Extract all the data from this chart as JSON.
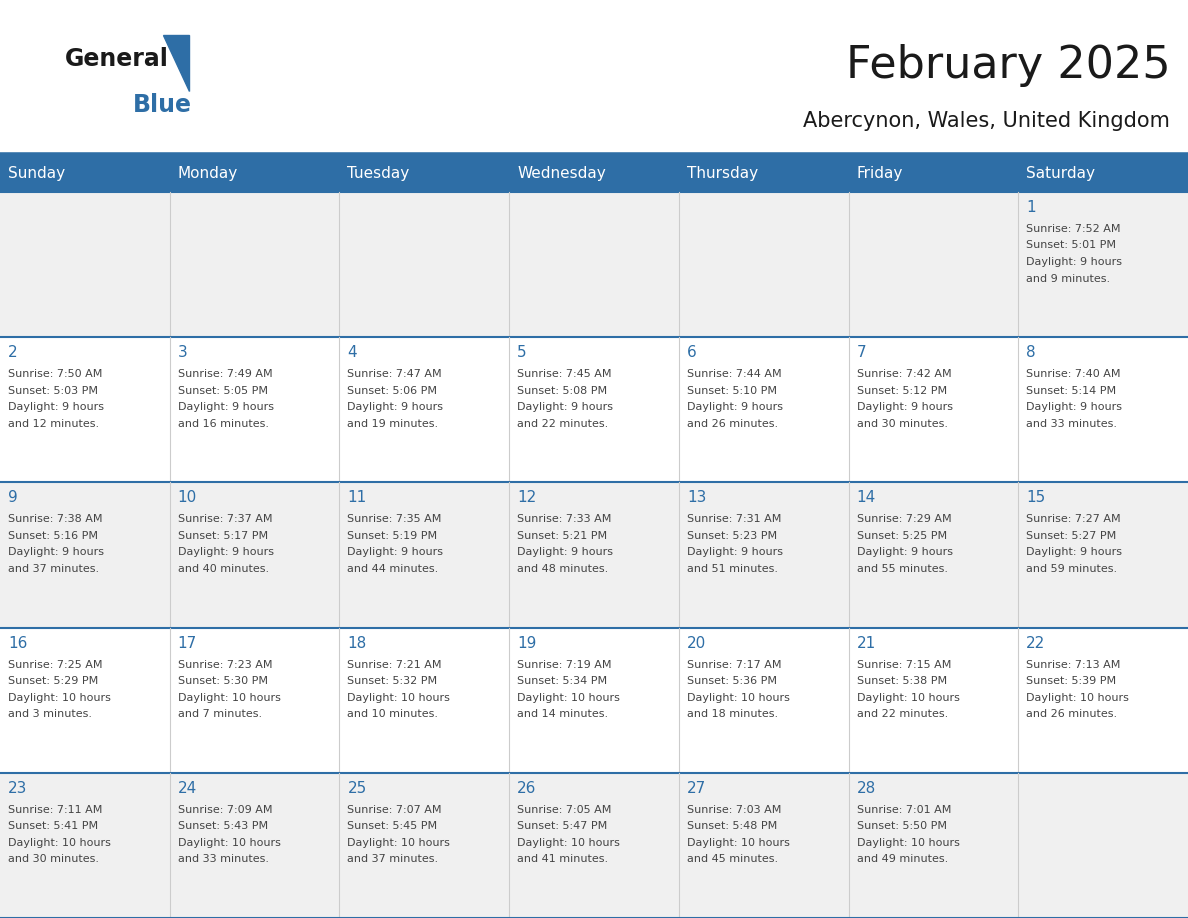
{
  "title": "February 2025",
  "subtitle": "Abercynon, Wales, United Kingdom",
  "days_of_week": [
    "Sunday",
    "Monday",
    "Tuesday",
    "Wednesday",
    "Thursday",
    "Friday",
    "Saturday"
  ],
  "header_bg": "#2E6EA6",
  "header_text": "#FFFFFF",
  "row_bg_even": "#F0F0F0",
  "row_bg_odd": "#FFFFFF",
  "cell_border": "#AAAAAA",
  "day_number_color": "#2E6EA6",
  "text_color": "#444444",
  "calendar_data": [
    [
      null,
      null,
      null,
      null,
      null,
      null,
      {
        "day": 1,
        "sunrise": "7:52 AM",
        "sunset": "5:01 PM",
        "daylight": "9 hours",
        "daylight2": "and 9 minutes."
      }
    ],
    [
      {
        "day": 2,
        "sunrise": "7:50 AM",
        "sunset": "5:03 PM",
        "daylight": "9 hours",
        "daylight2": "and 12 minutes."
      },
      {
        "day": 3,
        "sunrise": "7:49 AM",
        "sunset": "5:05 PM",
        "daylight": "9 hours",
        "daylight2": "and 16 minutes."
      },
      {
        "day": 4,
        "sunrise": "7:47 AM",
        "sunset": "5:06 PM",
        "daylight": "9 hours",
        "daylight2": "and 19 minutes."
      },
      {
        "day": 5,
        "sunrise": "7:45 AM",
        "sunset": "5:08 PM",
        "daylight": "9 hours",
        "daylight2": "and 22 minutes."
      },
      {
        "day": 6,
        "sunrise": "7:44 AM",
        "sunset": "5:10 PM",
        "daylight": "9 hours",
        "daylight2": "and 26 minutes."
      },
      {
        "day": 7,
        "sunrise": "7:42 AM",
        "sunset": "5:12 PM",
        "daylight": "9 hours",
        "daylight2": "and 30 minutes."
      },
      {
        "day": 8,
        "sunrise": "7:40 AM",
        "sunset": "5:14 PM",
        "daylight": "9 hours",
        "daylight2": "and 33 minutes."
      }
    ],
    [
      {
        "day": 9,
        "sunrise": "7:38 AM",
        "sunset": "5:16 PM",
        "daylight": "9 hours",
        "daylight2": "and 37 minutes."
      },
      {
        "day": 10,
        "sunrise": "7:37 AM",
        "sunset": "5:17 PM",
        "daylight": "9 hours",
        "daylight2": "and 40 minutes."
      },
      {
        "day": 11,
        "sunrise": "7:35 AM",
        "sunset": "5:19 PM",
        "daylight": "9 hours",
        "daylight2": "and 44 minutes."
      },
      {
        "day": 12,
        "sunrise": "7:33 AM",
        "sunset": "5:21 PM",
        "daylight": "9 hours",
        "daylight2": "and 48 minutes."
      },
      {
        "day": 13,
        "sunrise": "7:31 AM",
        "sunset": "5:23 PM",
        "daylight": "9 hours",
        "daylight2": "and 51 minutes."
      },
      {
        "day": 14,
        "sunrise": "7:29 AM",
        "sunset": "5:25 PM",
        "daylight": "9 hours",
        "daylight2": "and 55 minutes."
      },
      {
        "day": 15,
        "sunrise": "7:27 AM",
        "sunset": "5:27 PM",
        "daylight": "9 hours",
        "daylight2": "and 59 minutes."
      }
    ],
    [
      {
        "day": 16,
        "sunrise": "7:25 AM",
        "sunset": "5:29 PM",
        "daylight": "10 hours",
        "daylight2": "and 3 minutes."
      },
      {
        "day": 17,
        "sunrise": "7:23 AM",
        "sunset": "5:30 PM",
        "daylight": "10 hours",
        "daylight2": "and 7 minutes."
      },
      {
        "day": 18,
        "sunrise": "7:21 AM",
        "sunset": "5:32 PM",
        "daylight": "10 hours",
        "daylight2": "and 10 minutes."
      },
      {
        "day": 19,
        "sunrise": "7:19 AM",
        "sunset": "5:34 PM",
        "daylight": "10 hours",
        "daylight2": "and 14 minutes."
      },
      {
        "day": 20,
        "sunrise": "7:17 AM",
        "sunset": "5:36 PM",
        "daylight": "10 hours",
        "daylight2": "and 18 minutes."
      },
      {
        "day": 21,
        "sunrise": "7:15 AM",
        "sunset": "5:38 PM",
        "daylight": "10 hours",
        "daylight2": "and 22 minutes."
      },
      {
        "day": 22,
        "sunrise": "7:13 AM",
        "sunset": "5:39 PM",
        "daylight": "10 hours",
        "daylight2": "and 26 minutes."
      }
    ],
    [
      {
        "day": 23,
        "sunrise": "7:11 AM",
        "sunset": "5:41 PM",
        "daylight": "10 hours",
        "daylight2": "and 30 minutes."
      },
      {
        "day": 24,
        "sunrise": "7:09 AM",
        "sunset": "5:43 PM",
        "daylight": "10 hours",
        "daylight2": "and 33 minutes."
      },
      {
        "day": 25,
        "sunrise": "7:07 AM",
        "sunset": "5:45 PM",
        "daylight": "10 hours",
        "daylight2": "and 37 minutes."
      },
      {
        "day": 26,
        "sunrise": "7:05 AM",
        "sunset": "5:47 PM",
        "daylight": "10 hours",
        "daylight2": "and 41 minutes."
      },
      {
        "day": 27,
        "sunrise": "7:03 AM",
        "sunset": "5:48 PM",
        "daylight": "10 hours",
        "daylight2": "and 45 minutes."
      },
      {
        "day": 28,
        "sunrise": "7:01 AM",
        "sunset": "5:50 PM",
        "daylight": "10 hours",
        "daylight2": "and 49 minutes."
      },
      null
    ]
  ],
  "logo_color_general": "#1a1a1a",
  "logo_color_blue": "#2E6EA6",
  "logo_triangle_color": "#2E6EA6",
  "fig_width": 11.88,
  "fig_height": 9.18,
  "dpi": 100
}
